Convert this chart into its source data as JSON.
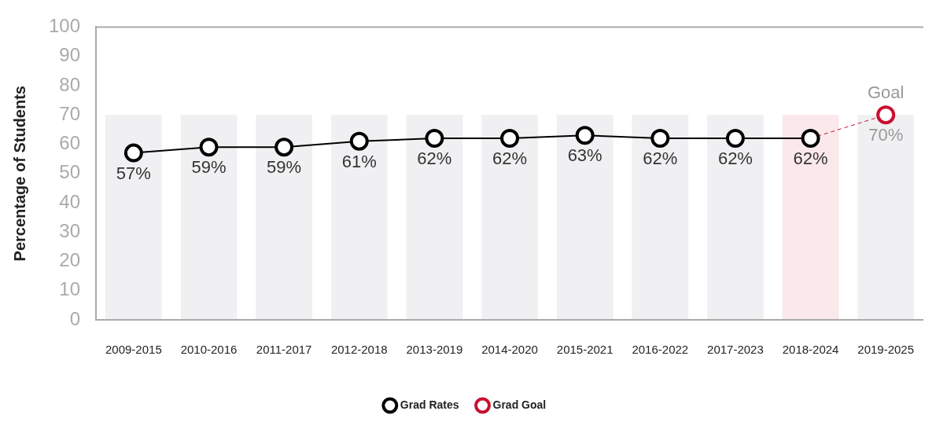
{
  "chart_data": {
    "type": "line",
    "ylabel": "Percentage of Students",
    "categories": [
      "2009-2015",
      "2010-2016",
      "2011-2017",
      "2012-2018",
      "2013-2019",
      "2014-2020",
      "2015-2021",
      "2016-2022",
      "2017-2023",
      "2018-2024",
      "2019-2025"
    ],
    "series": [
      {
        "type": "bar",
        "colors": [
          "#f0f0f2",
          "#f0f0f2",
          "#f0f0f2",
          "#f0f0f2",
          "#f0f0f2",
          "#f0f0f2",
          "#f0f0f2",
          "#f0f0f2",
          "#f0f0f2",
          "#fbe8ea",
          "#f0f0f2"
        ],
        "values": [
          70,
          70,
          70,
          70,
          70,
          70,
          70,
          70,
          70,
          70,
          70
        ]
      },
      {
        "name": "Grad Rates",
        "color": "#000000",
        "values": [
          57,
          59,
          59,
          61,
          62,
          62,
          63,
          62,
          62,
          62,
          null
        ],
        "value_labels": [
          "57%",
          "59%",
          "59%",
          "61%",
          "62%",
          "62%",
          "63%",
          "62%",
          "62%",
          "62%",
          null
        ]
      },
      {
        "name": "Grad Goal",
        "color": "#c8102e",
        "line_style": "dashed",
        "values": [
          null,
          null,
          null,
          null,
          null,
          null,
          null,
          null,
          null,
          62,
          70
        ],
        "value_labels": [
          null,
          null,
          null,
          null,
          null,
          null,
          null,
          null,
          null,
          null,
          "70%"
        ]
      }
    ],
    "ylim": [
      0,
      100
    ],
    "yticks": [
      0,
      10,
      20,
      30,
      40,
      50,
      60,
      70,
      80,
      90,
      100
    ],
    "ref_lines": [
      {
        "axis": "y",
        "value": 100
      }
    ],
    "annotations": [
      {
        "text": "Goal",
        "x": "2019-2025",
        "y": 70
      }
    ],
    "grid": false,
    "legend": "bottom",
    "marker": "circle"
  }
}
